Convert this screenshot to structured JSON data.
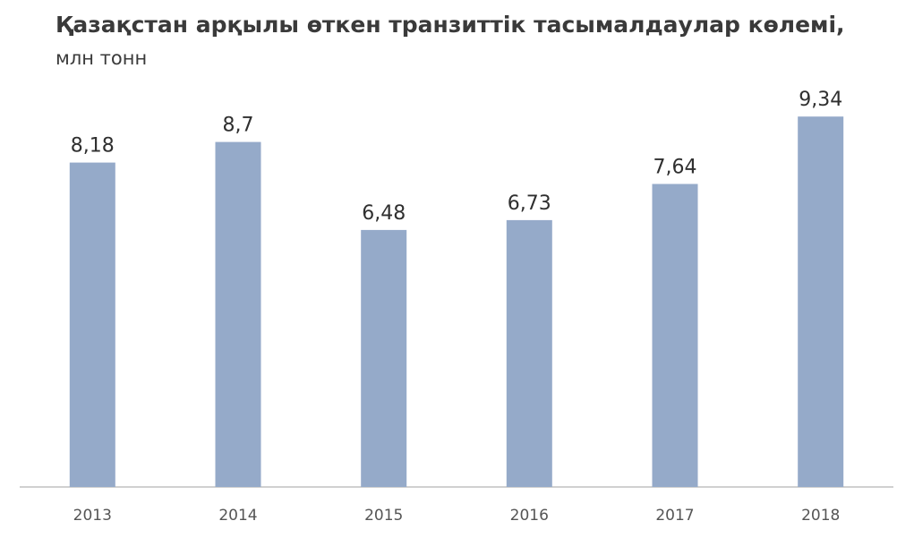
{
  "chart_data": {
    "type": "bar",
    "title": "Қазақстан арқылы өткен транзиттік тасымалдаулар көлемі,",
    "subtitle": "млн тонн",
    "categories": [
      "2013",
      "2014",
      "2015",
      "2016",
      "2017",
      "2018"
    ],
    "values": [
      8.18,
      8.7,
      6.48,
      6.73,
      7.64,
      9.34
    ],
    "value_labels": [
      "8,18",
      "8,7",
      "6,48",
      "6,73",
      "7,64",
      "9,34"
    ],
    "ylim": [
      0,
      10
    ],
    "grid": false,
    "legend": "none",
    "bar_color": "#95aac9",
    "baseline_color": "#d0d0d0"
  }
}
